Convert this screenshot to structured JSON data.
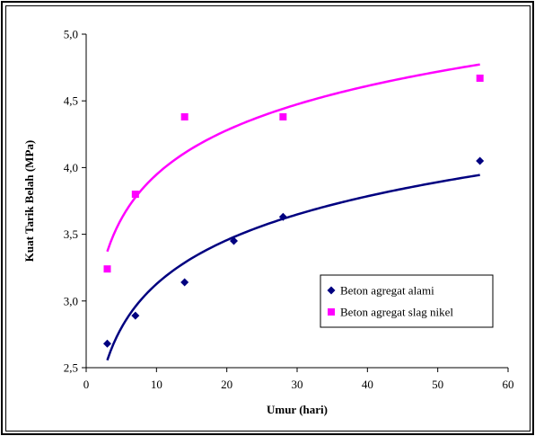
{
  "chart_data": {
    "type": "scatter",
    "title": "",
    "xlabel": "Umur (hari)",
    "ylabel": "Kuat Tarik Belah (MPa)",
    "xlim": [
      0,
      60
    ],
    "ylim": [
      2.5,
      5.0
    ],
    "x_ticks": [
      "0",
      "10",
      "20",
      "30",
      "40",
      "50",
      "60"
    ],
    "y_ticks": [
      "2,5",
      "3,0",
      "3,5",
      "4,0",
      "4,5",
      "5,0"
    ],
    "grid": false,
    "legend_position": "bottom-right",
    "series": [
      {
        "name": "Beton agregat alami",
        "marker": "diamond",
        "color": "#000080",
        "x": [
          3,
          7,
          14,
          21,
          28,
          56
        ],
        "y": [
          2.68,
          2.89,
          3.14,
          3.45,
          3.63,
          4.05
        ],
        "trendline": "logarithmic"
      },
      {
        "name": "Beton agregat slag nikel",
        "marker": "square",
        "color": "#ff00ff",
        "x": [
          3,
          7,
          14,
          28,
          56
        ],
        "y": [
          3.24,
          3.8,
          4.38,
          4.38,
          4.67
        ],
        "trendline": "logarithmic"
      }
    ]
  }
}
